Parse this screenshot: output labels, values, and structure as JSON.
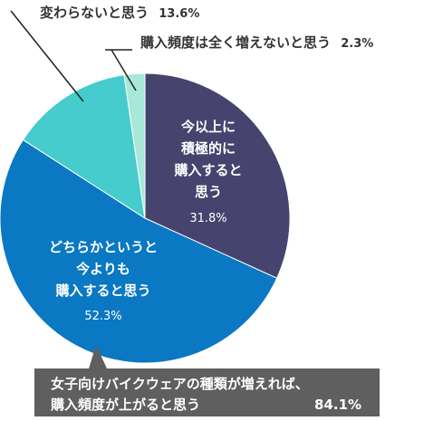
{
  "chart_data": {
    "type": "pie",
    "slices": [
      {
        "label_lines": [
          "今以上に",
          "積極的に",
          "購入すると",
          "思う"
        ],
        "percent_text": "31.8%",
        "value": 31.8,
        "color": "#46446e"
      },
      {
        "label_lines": [
          "どちらかというと",
          "今よりも",
          "購入すると思う"
        ],
        "percent_text": "52.3%",
        "value": 52.3,
        "color": "#0a78c2"
      },
      {
        "label_lines": [
          "変わらないと思う"
        ],
        "percent_text": "13.6%",
        "value": 13.6,
        "color": "#46cccc"
      },
      {
        "label_lines": [
          "購入頻度は全く増えないと思う"
        ],
        "percent_text": "2.3%",
        "value": 2.3,
        "color": "#a8e8d8"
      }
    ],
    "annotation": {
      "lines": [
        "女子向けバイクウェアの種類が増えれば、",
        "購入頻度が上がると思う"
      ],
      "value_text": "84.1%"
    },
    "start_angle_deg": 0,
    "direction": "clockwise"
  }
}
